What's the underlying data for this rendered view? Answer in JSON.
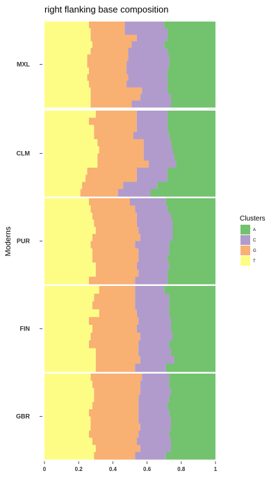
{
  "chart_data": {
    "type": "bar",
    "orientation": "horizontal-stacked",
    "title": "right flanking base composition",
    "xlabel": "",
    "ylabel": "Moderns",
    "xlim": [
      0,
      1
    ],
    "x_ticks": [
      "0",
      "0.2",
      "0.4",
      "0.6",
      "0.8",
      "1"
    ],
    "x_tick_values": [
      0,
      0.2,
      0.4,
      0.6,
      0.8,
      1
    ],
    "grid": false,
    "legend": {
      "title": "Clusters",
      "placement": "right",
      "items": [
        {
          "label": "A",
          "color": "#72c26e"
        },
        {
          "label": "C",
          "color": "#b09bcc"
        },
        {
          "label": "G",
          "color": "#f8b073"
        },
        {
          "label": "T",
          "color": "#fdfd86"
        }
      ]
    },
    "stack_order": [
      "T",
      "G",
      "C",
      "A"
    ],
    "colors": {
      "A": "#72c26e",
      "C": "#b09bcc",
      "G": "#f8b073",
      "T": "#fdfd86"
    },
    "panels": [
      {
        "label": "MXL",
        "rows": [
          {
            "T": 0.26,
            "G": 0.21,
            "C": 0.23
          },
          {
            "T": 0.27,
            "G": 0.2,
            "C": 0.25
          },
          {
            "T": 0.27,
            "G": 0.27,
            "C": 0.18
          },
          {
            "T": 0.28,
            "G": 0.23,
            "C": 0.19
          },
          {
            "T": 0.27,
            "G": 0.22,
            "C": 0.23
          },
          {
            "T": 0.25,
            "G": 0.24,
            "C": 0.24
          },
          {
            "T": 0.25,
            "G": 0.23,
            "C": 0.25
          },
          {
            "T": 0.26,
            "G": 0.22,
            "C": 0.24
          },
          {
            "T": 0.25,
            "G": 0.24,
            "C": 0.23
          },
          {
            "T": 0.26,
            "G": 0.22,
            "C": 0.24
          },
          {
            "T": 0.27,
            "G": 0.3,
            "C": 0.15
          },
          {
            "T": 0.27,
            "G": 0.29,
            "C": 0.18
          },
          {
            "T": 0.27,
            "G": 0.24,
            "C": 0.23
          }
        ]
      },
      {
        "label": "CLM",
        "rows": [
          {
            "T": 0.3,
            "G": 0.24,
            "C": 0.18
          },
          {
            "T": 0.26,
            "G": 0.28,
            "C": 0.18
          },
          {
            "T": 0.29,
            "G": 0.25,
            "C": 0.18
          },
          {
            "T": 0.29,
            "G": 0.23,
            "C": 0.21
          },
          {
            "T": 0.31,
            "G": 0.27,
            "C": 0.16
          },
          {
            "T": 0.32,
            "G": 0.26,
            "C": 0.17
          },
          {
            "T": 0.31,
            "G": 0.27,
            "C": 0.18
          },
          {
            "T": 0.31,
            "G": 0.3,
            "C": 0.16
          },
          {
            "T": 0.25,
            "G": 0.29,
            "C": 0.18
          },
          {
            "T": 0.24,
            "G": 0.3,
            "C": 0.18
          },
          {
            "T": 0.22,
            "G": 0.24,
            "C": 0.2
          },
          {
            "T": 0.21,
            "G": 0.22,
            "C": 0.19
          }
        ]
      },
      {
        "label": "PUR",
        "rows": [
          {
            "T": 0.26,
            "G": 0.24,
            "C": 0.21
          },
          {
            "T": 0.27,
            "G": 0.26,
            "C": 0.19
          },
          {
            "T": 0.28,
            "G": 0.26,
            "C": 0.2
          },
          {
            "T": 0.29,
            "G": 0.25,
            "C": 0.21
          },
          {
            "T": 0.3,
            "G": 0.25,
            "C": 0.2
          },
          {
            "T": 0.28,
            "G": 0.28,
            "C": 0.19
          },
          {
            "T": 0.27,
            "G": 0.26,
            "C": 0.2
          },
          {
            "T": 0.28,
            "G": 0.27,
            "C": 0.18
          },
          {
            "T": 0.28,
            "G": 0.27,
            "C": 0.17
          },
          {
            "T": 0.3,
            "G": 0.24,
            "C": 0.19
          },
          {
            "T": 0.3,
            "G": 0.25,
            "C": 0.17
          },
          {
            "T": 0.26,
            "G": 0.27,
            "C": 0.19
          }
        ]
      },
      {
        "label": "FIN",
        "rows": [
          {
            "T": 0.32,
            "G": 0.21,
            "C": 0.17
          },
          {
            "T": 0.29,
            "G": 0.24,
            "C": 0.2
          },
          {
            "T": 0.28,
            "G": 0.25,
            "C": 0.2
          },
          {
            "T": 0.32,
            "G": 0.22,
            "C": 0.19
          },
          {
            "T": 0.26,
            "G": 0.29,
            "C": 0.19
          },
          {
            "T": 0.28,
            "G": 0.26,
            "C": 0.2
          },
          {
            "T": 0.27,
            "G": 0.29,
            "C": 0.19
          },
          {
            "T": 0.26,
            "G": 0.29,
            "C": 0.18
          },
          {
            "T": 0.3,
            "G": 0.25,
            "C": 0.19
          },
          {
            "T": 0.3,
            "G": 0.26,
            "C": 0.2
          },
          {
            "T": 0.3,
            "G": 0.23,
            "C": 0.18
          }
        ]
      },
      {
        "label": "GBR",
        "rows": [
          {
            "T": 0.27,
            "G": 0.3,
            "C": 0.16
          },
          {
            "T": 0.28,
            "G": 0.28,
            "C": 0.17
          },
          {
            "T": 0.29,
            "G": 0.27,
            "C": 0.18
          },
          {
            "T": 0.29,
            "G": 0.26,
            "C": 0.18
          },
          {
            "T": 0.28,
            "G": 0.27,
            "C": 0.17
          },
          {
            "T": 0.26,
            "G": 0.29,
            "C": 0.18
          },
          {
            "T": 0.27,
            "G": 0.28,
            "C": 0.19
          },
          {
            "T": 0.27,
            "G": 0.29,
            "C": 0.18
          },
          {
            "T": 0.26,
            "G": 0.29,
            "C": 0.18
          },
          {
            "T": 0.28,
            "G": 0.26,
            "C": 0.2
          },
          {
            "T": 0.3,
            "G": 0.26,
            "C": 0.18
          },
          {
            "T": 0.29,
            "G": 0.24,
            "C": 0.18
          }
        ]
      }
    ]
  }
}
